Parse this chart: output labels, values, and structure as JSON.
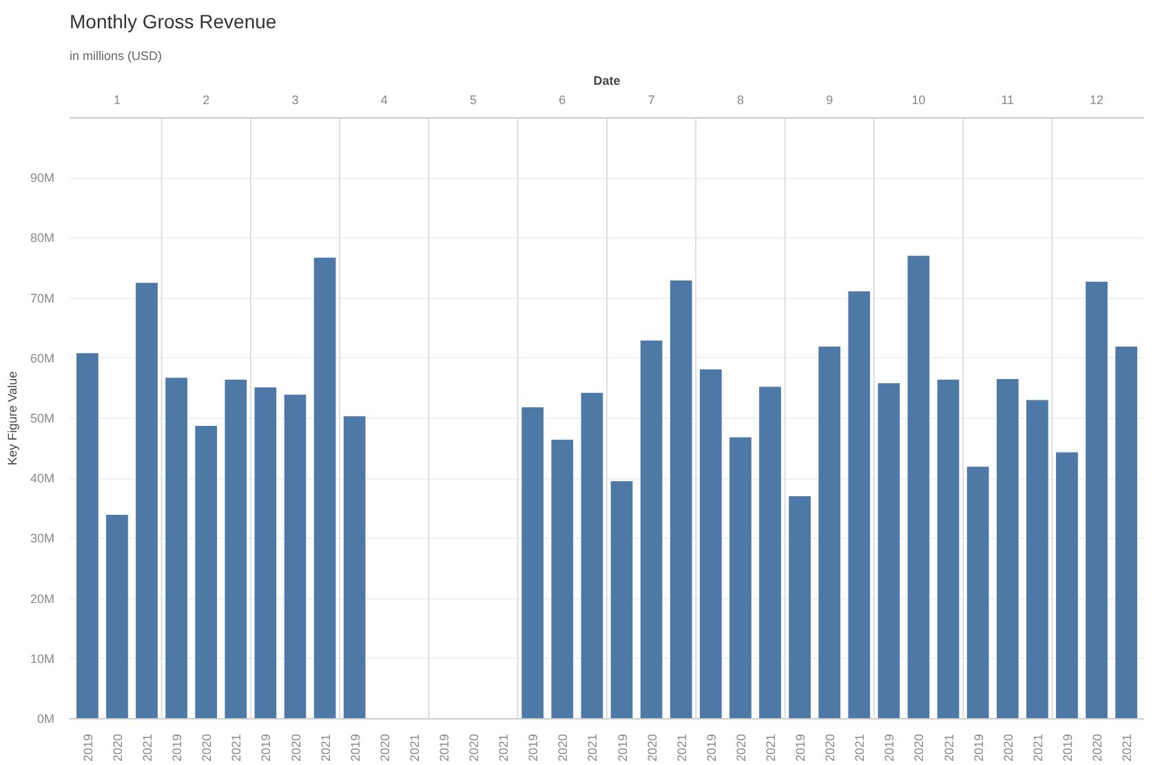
{
  "chart_data": {
    "type": "bar",
    "title": "Monthly Gross Revenue",
    "subtitle": "in millions (USD)",
    "xlabel": "Date",
    "ylabel": "Key Figure Value",
    "categories": [
      "2019",
      "2020",
      "2021",
      "2019",
      "2020",
      "2021",
      "2019",
      "2020",
      "2021",
      "2019",
      "2020",
      "2021",
      "2019",
      "2020",
      "2021",
      "2019",
      "2020",
      "2021",
      "2019",
      "2020",
      "2021",
      "2019",
      "2020",
      "2021",
      "2019",
      "2020",
      "2021",
      "2019",
      "2020",
      "2021",
      "2019",
      "2020",
      "2021",
      "2019",
      "2020",
      "2021"
    ],
    "annotations": [
      "1",
      "2",
      "3",
      "4",
      "5",
      "6",
      "7",
      "8",
      "9",
      "10",
      "11",
      "12"
    ],
    "values": [
      60.9,
      34.0,
      72.6,
      56.8,
      48.8,
      56.5,
      55.2,
      54.0,
      76.8,
      50.4,
      null,
      null,
      null,
      null,
      null,
      51.9,
      46.5,
      54.3,
      39.6,
      63.0,
      73.0,
      58.2,
      46.9,
      55.3,
      37.1,
      62.0,
      71.2,
      55.9,
      77.1,
      56.5,
      42.0,
      56.6,
      53.1,
      44.4,
      72.8,
      62.0
    ],
    "color": "#4e79a7",
    "ylim": [
      0,
      100
    ],
    "yticks": [
      {
        "value": 0,
        "label": "0M"
      },
      {
        "value": 10,
        "label": "10M"
      },
      {
        "value": 20,
        "label": "20M"
      },
      {
        "value": 30,
        "label": "30M"
      },
      {
        "value": 40,
        "label": "40M"
      },
      {
        "value": 50,
        "label": "50M"
      },
      {
        "value": 60,
        "label": "60M"
      },
      {
        "value": 70,
        "label": "70M"
      },
      {
        "value": 80,
        "label": "80M"
      },
      {
        "value": 90,
        "label": "90M"
      }
    ],
    "grid": "y"
  }
}
